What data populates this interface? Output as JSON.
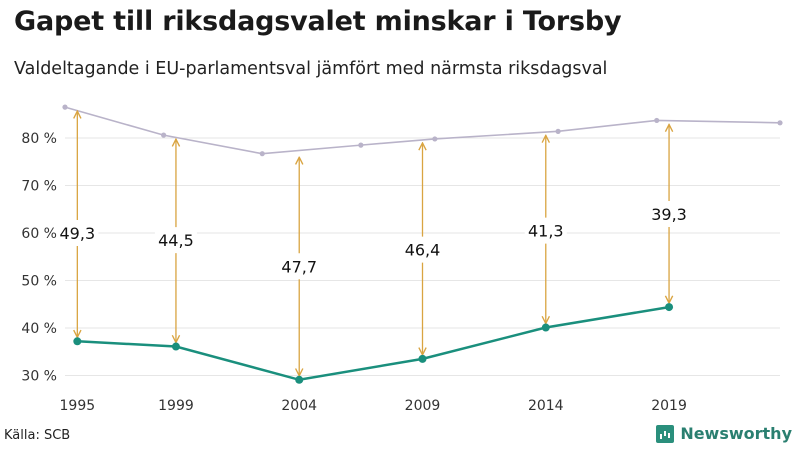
{
  "title": "Gapet till riksdagsvalet minskar i Torsby",
  "subtitle": "Valdeltagande i EU-parlamentsval jämfört med närmsta riksdagsval",
  "source": "Källa: SCB",
  "brand": {
    "name": "Newsworthy",
    "icon": "bar-chart-icon"
  },
  "chart_data": {
    "type": "line",
    "x_ticks": [
      "1995",
      "1999",
      "2004",
      "2009",
      "2014",
      "2019"
    ],
    "y_ticks": [
      "30 %",
      "40 %",
      "50 %",
      "60 %",
      "70 %",
      "80 %"
    ],
    "ylim": [
      28,
      88
    ],
    "xlim": [
      1994.5,
      2023.5
    ],
    "grid": true,
    "series": [
      {
        "name": "",
        "color": "#b9b3c9",
        "points": [
          {
            "x": 1994.5,
            "y": 86.5
          },
          {
            "x": 1998.5,
            "y": 80.6
          },
          {
            "x": 2002.5,
            "y": 76.7
          },
          {
            "x": 2006.5,
            "y": 78.5
          },
          {
            "x": 2009.5,
            "y": 79.8
          },
          {
            "x": 2014.5,
            "y": 81.4
          },
          {
            "x": 2018.5,
            "y": 83.7
          },
          {
            "x": 2023.5,
            "y": 83.2
          }
        ]
      },
      {
        "name": "",
        "color": "#1a8f7d",
        "points": [
          {
            "x": 1995,
            "y": 37.2
          },
          {
            "x": 1999,
            "y": 36.1
          },
          {
            "x": 2004,
            "y": 29.1
          },
          {
            "x": 2009,
            "y": 33.5
          },
          {
            "x": 2014,
            "y": 40.1
          },
          {
            "x": 2019,
            "y": 44.4
          }
        ]
      }
    ],
    "gaps": [
      {
        "x": 1995,
        "top": 86.5,
        "bottom": 37.2,
        "label": "49,3",
        "label_y": 60.0
      },
      {
        "x": 1999,
        "top": 80.6,
        "bottom": 36.1,
        "label": "44,5",
        "label_y": 58.5
      },
      {
        "x": 2004,
        "top": 76.8,
        "bottom": 29.1,
        "label": "47,7",
        "label_y": 53.0
      },
      {
        "x": 2009,
        "top": 79.8,
        "bottom": 33.5,
        "label": "46,4",
        "label_y": 56.5
      },
      {
        "x": 2014,
        "top": 81.4,
        "bottom": 40.1,
        "label": "41,3",
        "label_y": 60.5
      },
      {
        "x": 2019,
        "top": 83.7,
        "bottom": 44.4,
        "label": "39,3",
        "label_y": 64.0
      }
    ],
    "arrow_color": "#d9a441"
  }
}
